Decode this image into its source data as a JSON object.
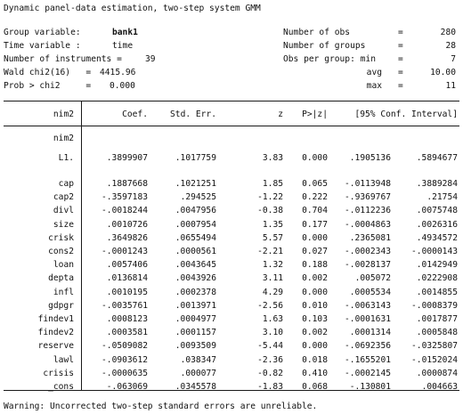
{
  "title": "Dynamic panel-data estimation, two-step system GMM",
  "header_left": [
    {
      "label": "Group variable:",
      "value": "bank1"
    },
    {
      "label": "Time variable :",
      "value": "time"
    },
    {
      "label": "Number of instruments =",
      "value": "39"
    },
    {
      "label": "Wald chi2(16)   =",
      "value": "4415.96"
    },
    {
      "label": "Prob > chi2     =",
      "value": "0.000"
    }
  ],
  "header_right": [
    {
      "label": "Number of obs",
      "eq": "=",
      "value": "280"
    },
    {
      "label": "Number of groups",
      "eq": "=",
      "value": "28"
    },
    {
      "label": "Obs per group: min",
      "eq": "=",
      "value": "7"
    },
    {
      "label": "avg",
      "eq": "=",
      "value": "10.00"
    },
    {
      "label": "max",
      "eq": "=",
      "value": "11"
    }
  ],
  "table": {
    "depvar": "nim2",
    "columns": [
      "Coef.",
      "Std. Err.",
      "z",
      "P>|z|",
      "[95% Conf. Interval]"
    ],
    "section_label": "nim2",
    "rows": [
      {
        "name": "L1.",
        "coef": ".3899907",
        "se": ".1017759",
        "z": "3.83",
        "p": "0.000",
        "lo": ".1905136",
        "hi": ".5894677"
      },
      {
        "name": "cap",
        "coef": ".1887668",
        "se": ".1021251",
        "z": "1.85",
        "p": "0.065",
        "lo": "-.0113948",
        "hi": ".3889284"
      },
      {
        "name": "cap2",
        "coef": "-.3597183",
        "se": ".294525",
        "z": "-1.22",
        "p": "0.222",
        "lo": "-.9369767",
        "hi": ".21754"
      },
      {
        "name": "divl",
        "coef": "-.0018244",
        "se": ".0047956",
        "z": "-0.38",
        "p": "0.704",
        "lo": "-.0112236",
        "hi": ".0075748"
      },
      {
        "name": "size",
        "coef": ".0010726",
        "se": ".0007954",
        "z": "1.35",
        "p": "0.177",
        "lo": "-.0004863",
        "hi": ".0026316"
      },
      {
        "name": "crisk",
        "coef": ".3649826",
        "se": ".0655494",
        "z": "5.57",
        "p": "0.000",
        "lo": ".2365081",
        "hi": ".4934572"
      },
      {
        "name": "cons2",
        "coef": "-.0001243",
        "se": ".0000561",
        "z": "-2.21",
        "p": "0.027",
        "lo": "-.0002343",
        "hi": "-.0000143"
      },
      {
        "name": "loan",
        "coef": ".0057406",
        "se": ".0043645",
        "z": "1.32",
        "p": "0.188",
        "lo": "-.0028137",
        "hi": ".0142949"
      },
      {
        "name": "depta",
        "coef": ".0136814",
        "se": ".0043926",
        "z": "3.11",
        "p": "0.002",
        "lo": ".005072",
        "hi": ".0222908"
      },
      {
        "name": "infl",
        "coef": ".0010195",
        "se": ".0002378",
        "z": "4.29",
        "p": "0.000",
        "lo": ".0005534",
        "hi": ".0014855"
      },
      {
        "name": "gdpgr",
        "coef": "-.0035761",
        "se": ".0013971",
        "z": "-2.56",
        "p": "0.010",
        "lo": "-.0063143",
        "hi": "-.0008379"
      },
      {
        "name": "findev1",
        "coef": ".0008123",
        "se": ".0004977",
        "z": "1.63",
        "p": "0.103",
        "lo": "-.0001631",
        "hi": ".0017877"
      },
      {
        "name": "findev2",
        "coef": ".0003581",
        "se": ".0001157",
        "z": "3.10",
        "p": "0.002",
        "lo": ".0001314",
        "hi": ".0005848"
      },
      {
        "name": "reserve",
        "coef": "-.0509082",
        "se": ".0093509",
        "z": "-5.44",
        "p": "0.000",
        "lo": "-.0692356",
        "hi": "-.0325807"
      },
      {
        "name": "lawl",
        "coef": "-.0903612",
        "se": ".038347",
        "z": "-2.36",
        "p": "0.018",
        "lo": "-.1655201",
        "hi": "-.0152024"
      },
      {
        "name": "crisis",
        "coef": "-.0000635",
        "se": ".000077",
        "z": "-0.82",
        "p": "0.410",
        "lo": "-.0002145",
        "hi": ".0000874"
      },
      {
        "name": "_cons",
        "coef": "-.063069",
        "se": ".0345578",
        "z": "-1.83",
        "p": "0.068",
        "lo": "-.130801",
        "hi": ".004663"
      }
    ]
  },
  "warning": "Warning: Uncorrected two-step standard errors are unreliable."
}
